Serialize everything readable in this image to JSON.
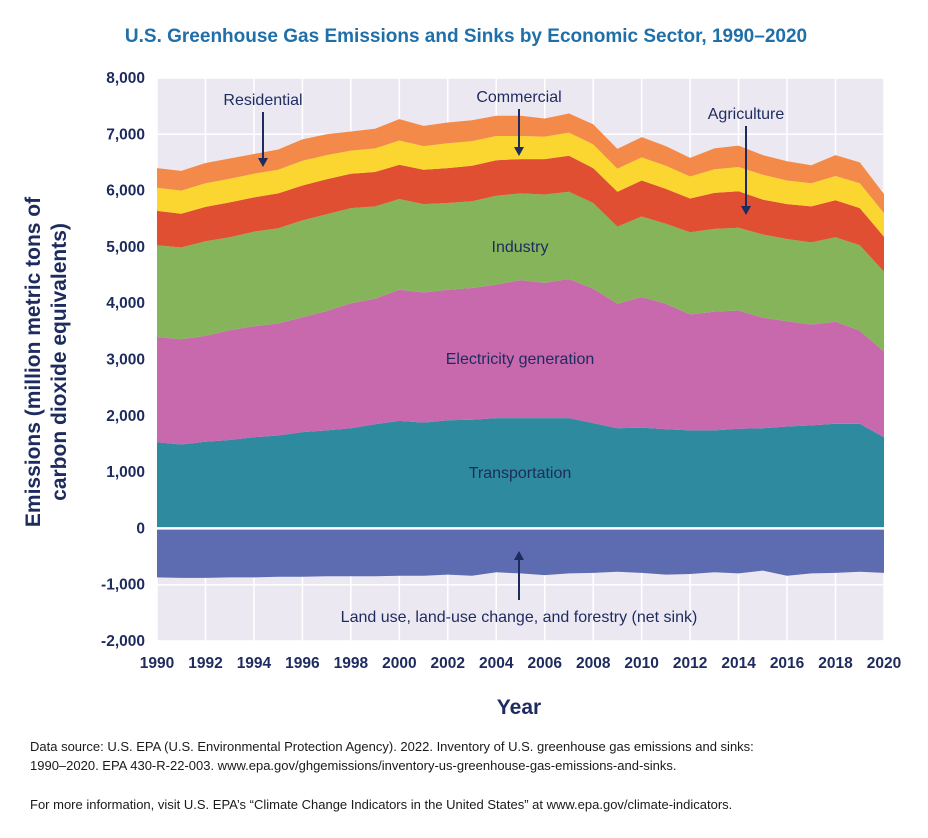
{
  "colors": {
    "background_band": "#ebe8f2",
    "grid": "#ffffff",
    "transportation": "#2e8a9e",
    "electricity": "#c868ad",
    "industry": "#86b45b",
    "agriculture": "#e14f32",
    "commercial": "#fbd631",
    "residential": "#f48a49",
    "sink": "#5d6bb0",
    "text": "#1d2b5e",
    "title": "#1f6fa8"
  },
  "chart_data": {
    "type": "area",
    "stacked": true,
    "title": "U.S. Greenhouse Gas Emissions and Sinks by Economic Sector, 1990–2020",
    "xlabel": "Year",
    "ylabel_line1": "Emissions (million metric tons of",
    "ylabel_line2": "carbon dioxide equivalents)",
    "xlim": [
      1990,
      2020
    ],
    "ylim": [
      -2000,
      8000
    ],
    "x": [
      1990,
      1991,
      1992,
      1993,
      1994,
      1995,
      1996,
      1997,
      1998,
      1999,
      2000,
      2001,
      2002,
      2003,
      2004,
      2005,
      2006,
      2007,
      2008,
      2009,
      2010,
      2011,
      2012,
      2013,
      2014,
      2015,
      2016,
      2017,
      2018,
      2019,
      2020
    ],
    "x_ticks": [
      {
        "value": 1990,
        "label": "1990"
      },
      {
        "value": 1992,
        "label": "1992"
      },
      {
        "value": 1994,
        "label": "1994"
      },
      {
        "value": 1996,
        "label": "1996"
      },
      {
        "value": 1998,
        "label": "1998"
      },
      {
        "value": 2000,
        "label": "2000"
      },
      {
        "value": 2002,
        "label": "2002"
      },
      {
        "value": 2004,
        "label": "2004"
      },
      {
        "value": 2006,
        "label": "2006"
      },
      {
        "value": 2008,
        "label": "2008"
      },
      {
        "value": 2010,
        "label": "2010"
      },
      {
        "value": 2012,
        "label": "2012"
      },
      {
        "value": 2014,
        "label": "2014"
      },
      {
        "value": 2016,
        "label": "2016"
      },
      {
        "value": 2018,
        "label": "2018"
      },
      {
        "value": 2020,
        "label": "2020"
      }
    ],
    "y_ticks": [
      {
        "value": 8000,
        "label": "8,000"
      },
      {
        "value": 7000,
        "label": "7,000"
      },
      {
        "value": 6000,
        "label": "6,000"
      },
      {
        "value": 5000,
        "label": "5,000"
      },
      {
        "value": 4000,
        "label": "4,000"
      },
      {
        "value": 3000,
        "label": "3,000"
      },
      {
        "value": 2000,
        "label": "2,000"
      },
      {
        "value": 1000,
        "label": "1,000"
      },
      {
        "value": 0,
        "label": "0"
      },
      {
        "value": -1000,
        "label": "-1,000"
      },
      {
        "value": -2000,
        "label": "-2,000"
      }
    ],
    "series": [
      {
        "key": "transportation",
        "name": "Transportation",
        "values": [
          1530,
          1490,
          1540,
          1570,
          1620,
          1650,
          1710,
          1740,
          1780,
          1850,
          1910,
          1880,
          1920,
          1930,
          1960,
          1960,
          1960,
          1960,
          1870,
          1780,
          1790,
          1760,
          1740,
          1740,
          1770,
          1780,
          1810,
          1830,
          1860,
          1860,
          1620
        ]
      },
      {
        "key": "electricity",
        "name": "Electricity generation",
        "values": [
          1870,
          1870,
          1880,
          1950,
          1970,
          1990,
          2040,
          2120,
          2220,
          2230,
          2330,
          2310,
          2320,
          2340,
          2370,
          2450,
          2400,
          2470,
          2390,
          2210,
          2320,
          2230,
          2060,
          2110,
          2100,
          1960,
          1870,
          1790,
          1810,
          1650,
          1520
        ]
      },
      {
        "key": "industry",
        "name": "Industry",
        "values": [
          1630,
          1630,
          1680,
          1650,
          1680,
          1690,
          1720,
          1720,
          1690,
          1640,
          1610,
          1570,
          1540,
          1540,
          1580,
          1540,
          1570,
          1550,
          1520,
          1370,
          1430,
          1420,
          1460,
          1470,
          1470,
          1480,
          1460,
          1460,
          1500,
          1520,
          1420
        ]
      },
      {
        "key": "agriculture",
        "name": "Agriculture",
        "values": [
          610,
          600,
          610,
          620,
          610,
          620,
          620,
          620,
          610,
          610,
          610,
          610,
          620,
          630,
          630,
          610,
          630,
          640,
          620,
          620,
          640,
          620,
          600,
          640,
          650,
          620,
          620,
          640,
          660,
          660,
          620
        ]
      },
      {
        "key": "commercial",
        "name": "Commercial",
        "values": [
          410,
          410,
          420,
          420,
          420,
          420,
          440,
          430,
          410,
          420,
          430,
          420,
          440,
          440,
          430,
          410,
          400,
          410,
          420,
          410,
          410,
          410,
          390,
          420,
          430,
          440,
          420,
          410,
          430,
          440,
          420
        ]
      },
      {
        "key": "residential",
        "name": "Residential",
        "values": [
          350,
          350,
          360,
          360,
          350,
          360,
          380,
          370,
          340,
          350,
          380,
          360,
          370,
          370,
          360,
          360,
          320,
          340,
          360,
          350,
          360,
          350,
          330,
          370,
          380,
          350,
          340,
          320,
          370,
          370,
          340
        ]
      },
      {
        "key": "sink",
        "name": "Land use, land-use change, and forestry (net sink)",
        "values": [
          -870,
          -880,
          -880,
          -870,
          -870,
          -860,
          -860,
          -850,
          -850,
          -850,
          -840,
          -840,
          -820,
          -840,
          -780,
          -800,
          -830,
          -800,
          -790,
          -770,
          -790,
          -820,
          -810,
          -780,
          -800,
          -750,
          -840,
          -800,
          -790,
          -770,
          -790
        ]
      }
    ],
    "labels": {
      "residential": "Residential",
      "commercial": "Commercial",
      "agriculture": "Agriculture",
      "industry": "Industry",
      "electricity": "Electricity generation",
      "transportation": "Transportation",
      "sink": "Land use, land-use change, and forestry (net sink)"
    }
  },
  "footer": {
    "source_line1": "Data source: U.S. EPA (U.S. Environmental Protection Agency). 2022. Inventory of U.S. greenhouse gas emissions and sinks:",
    "source_line2": "1990–2020. EPA 430-R-22-003. www.epa.gov/ghgemissions/inventory-us-greenhouse-gas-emissions-and-sinks.",
    "more_info": "For more information, visit U.S. EPA’s “Climate Change Indicators in the United States” at www.epa.gov/climate-indicators."
  }
}
